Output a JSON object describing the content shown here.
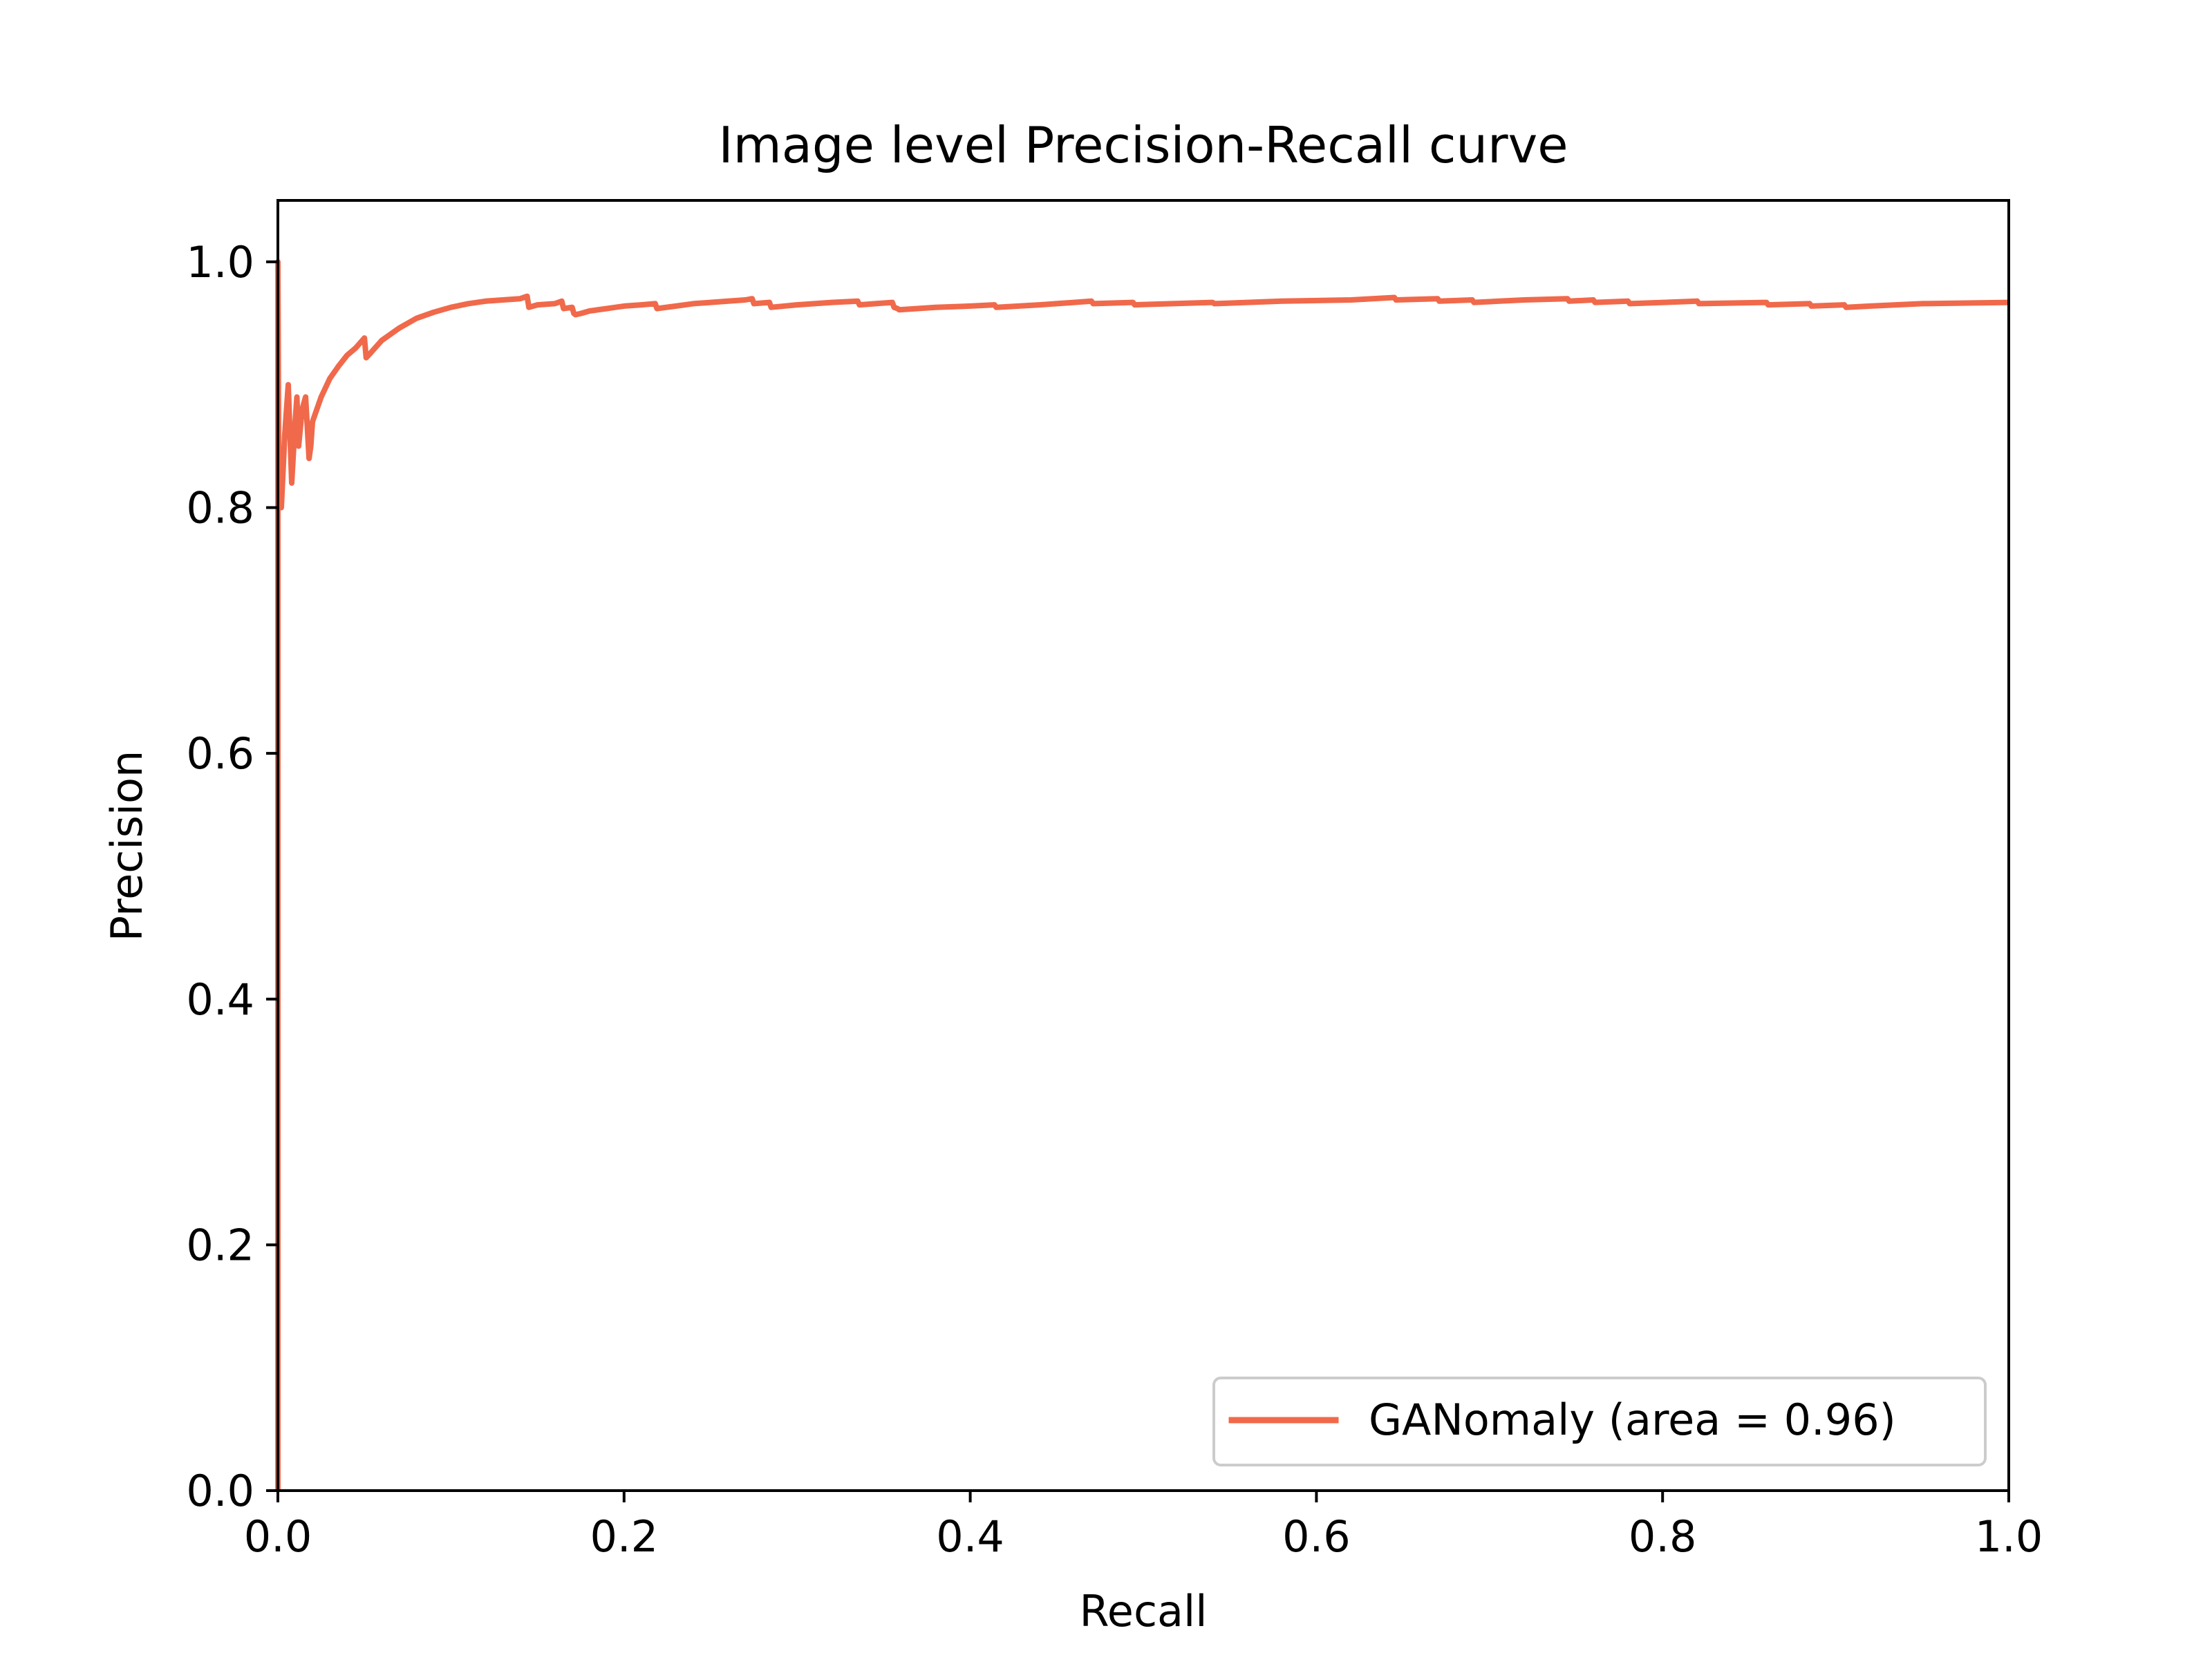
{
  "chart_data": {
    "type": "line",
    "title": "Image level Precision-Recall curve",
    "xlabel": "Recall",
    "ylabel": "Precision",
    "xlim": [
      0.0,
      1.0
    ],
    "ylim": [
      0.0,
      1.05
    ],
    "x_ticks": [
      0.0,
      0.2,
      0.4,
      0.6,
      0.8,
      1.0
    ],
    "x_tick_labels": [
      "0.0",
      "0.2",
      "0.4",
      "0.6",
      "0.8",
      "1.0"
    ],
    "y_ticks": [
      0.0,
      0.2,
      0.4,
      0.6,
      0.8,
      1.0
    ],
    "y_tick_labels": [
      "0.0",
      "0.2",
      "0.4",
      "0.6",
      "0.8",
      "1.0"
    ],
    "grid": false,
    "legend_position": "lower-right",
    "series": [
      {
        "name": "GANomaly (area = 0.96)",
        "color": "#f0694b",
        "x": [
          0.0,
          0.0,
          0.0005,
          0.002,
          0.004,
          0.006,
          0.008,
          0.01,
          0.011,
          0.012,
          0.014,
          0.016,
          0.018,
          0.019,
          0.02,
          0.025,
          0.03,
          0.035,
          0.04,
          0.045,
          0.05,
          0.051,
          0.053,
          0.06,
          0.07,
          0.08,
          0.09,
          0.1,
          0.11,
          0.12,
          0.13,
          0.14,
          0.144,
          0.145,
          0.15,
          0.16,
          0.164,
          0.165,
          0.17,
          0.171,
          0.172,
          0.175,
          0.18,
          0.19,
          0.2,
          0.21,
          0.218,
          0.219,
          0.23,
          0.24,
          0.25,
          0.26,
          0.27,
          0.274,
          0.275,
          0.284,
          0.285,
          0.3,
          0.32,
          0.335,
          0.336,
          0.355,
          0.356,
          0.358,
          0.359,
          0.38,
          0.4,
          0.414,
          0.415,
          0.44,
          0.46,
          0.47,
          0.471,
          0.494,
          0.495,
          0.54,
          0.541,
          0.58,
          0.62,
          0.645,
          0.646,
          0.67,
          0.671,
          0.69,
          0.691,
          0.72,
          0.745,
          0.746,
          0.76,
          0.761,
          0.78,
          0.781,
          0.82,
          0.821,
          0.86,
          0.861,
          0.885,
          0.886,
          0.905,
          0.906,
          0.92,
          0.95,
          1.0
        ],
        "y": [
          0.0,
          1.0,
          0.82,
          0.8,
          0.86,
          0.9,
          0.82,
          0.87,
          0.89,
          0.85,
          0.88,
          0.89,
          0.84,
          0.85,
          0.87,
          0.89,
          0.905,
          0.915,
          0.924,
          0.93,
          0.938,
          0.922,
          0.925,
          0.936,
          0.946,
          0.954,
          0.959,
          0.963,
          0.966,
          0.968,
          0.969,
          0.97,
          0.972,
          0.963,
          0.965,
          0.966,
          0.968,
          0.962,
          0.963,
          0.958,
          0.957,
          0.958,
          0.96,
          0.962,
          0.964,
          0.965,
          0.966,
          0.962,
          0.964,
          0.966,
          0.967,
          0.968,
          0.969,
          0.97,
          0.966,
          0.967,
          0.963,
          0.965,
          0.967,
          0.968,
          0.965,
          0.967,
          0.963,
          0.962,
          0.961,
          0.963,
          0.964,
          0.965,
          0.963,
          0.965,
          0.967,
          0.968,
          0.966,
          0.967,
          0.965,
          0.967,
          0.966,
          0.968,
          0.969,
          0.971,
          0.969,
          0.97,
          0.968,
          0.969,
          0.967,
          0.969,
          0.97,
          0.968,
          0.969,
          0.967,
          0.968,
          0.966,
          0.968,
          0.966,
          0.967,
          0.965,
          0.966,
          0.964,
          0.965,
          0.963,
          0.964,
          0.966,
          0.967
        ]
      }
    ]
  }
}
